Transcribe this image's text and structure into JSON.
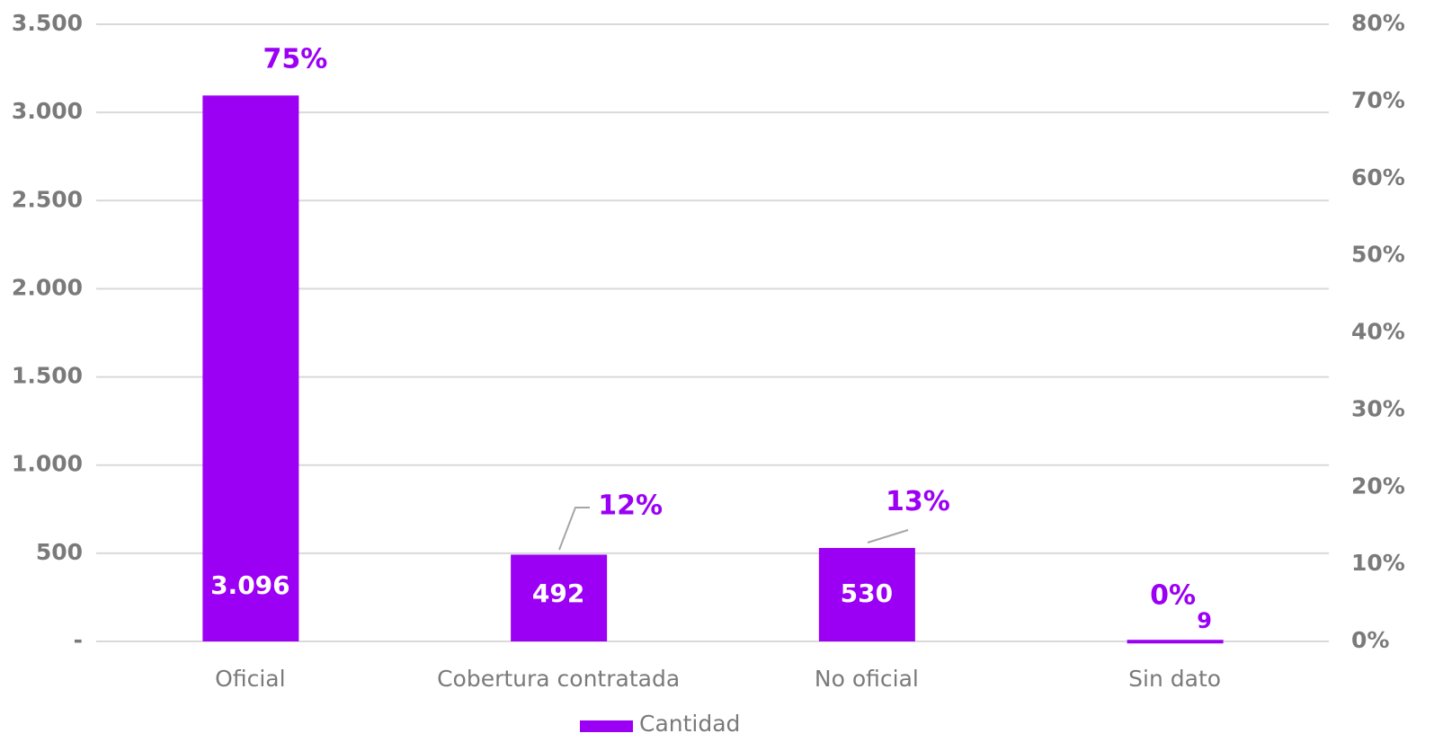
{
  "chart_data": {
    "type": "bar",
    "categories": [
      "Oficial",
      "Cobertura contratada",
      "No oficial",
      "Sin dato"
    ],
    "series": [
      {
        "name": "Cantidad",
        "color": "#9b00f5",
        "values": [
          3096,
          492,
          530,
          9
        ],
        "value_labels": [
          "3.096",
          "492",
          "530",
          "9"
        ]
      },
      {
        "color": "#9b00f5",
        "axis": "y2",
        "values": [
          75,
          12,
          13,
          0
        ],
        "value_labels": [
          "75%",
          "12%",
          "13%",
          "0%"
        ]
      }
    ],
    "ylim": [
      0,
      3500
    ],
    "yticks": [
      {
        "value": 0,
        "label": "-"
      },
      500,
      {
        "value": 1000,
        "label": "1.000"
      },
      {
        "value": 1500,
        "label": "1.500"
      },
      {
        "value": 2000,
        "label": "2.000"
      },
      {
        "value": 2500,
        "label": "2.500"
      },
      {
        "value": 3000,
        "label": "3.000"
      },
      {
        "value": 3500,
        "label": "3.500"
      }
    ],
    "y2lim": [
      0,
      80
    ],
    "y2ticks": [
      {
        "value": 0,
        "label": "0%"
      },
      {
        "value": 10,
        "label": "10%"
      },
      {
        "value": 20,
        "label": "20%"
      },
      {
        "value": 30,
        "label": "30%"
      },
      {
        "value": 40,
        "label": "40%"
      },
      {
        "value": 50,
        "label": "50%"
      },
      {
        "value": 60,
        "label": "60%"
      },
      {
        "value": 70,
        "label": "70%"
      },
      {
        "value": 80,
        "label": "80%"
      }
    ],
    "grid": true,
    "legend": "bottom"
  }
}
